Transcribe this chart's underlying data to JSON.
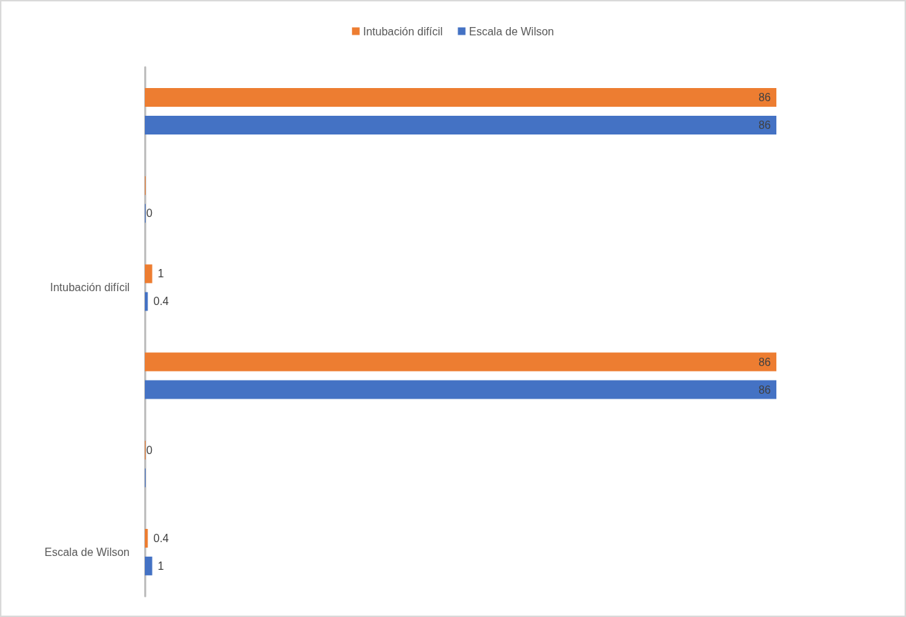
{
  "chart_data": {
    "type": "bar",
    "orientation": "horizontal",
    "categories": [
      null,
      null,
      "Intubación difícil",
      null,
      null,
      "Escala de Wilson"
    ],
    "series": [
      {
        "name": "Intubación difícil",
        "color": "#ed7d31",
        "values": [
          86,
          0,
          1,
          86,
          0,
          0.4
        ],
        "value_labels": [
          "86",
          null,
          "1",
          "86",
          "0",
          "0.4"
        ]
      },
      {
        "name": "Escala de Wilson",
        "color": "#4472c4",
        "values": [
          86,
          0,
          0.4,
          86,
          0,
          1
        ],
        "value_labels": [
          "86",
          "0",
          "0.4",
          "86",
          null,
          "1"
        ]
      }
    ],
    "legend": "top"
  }
}
